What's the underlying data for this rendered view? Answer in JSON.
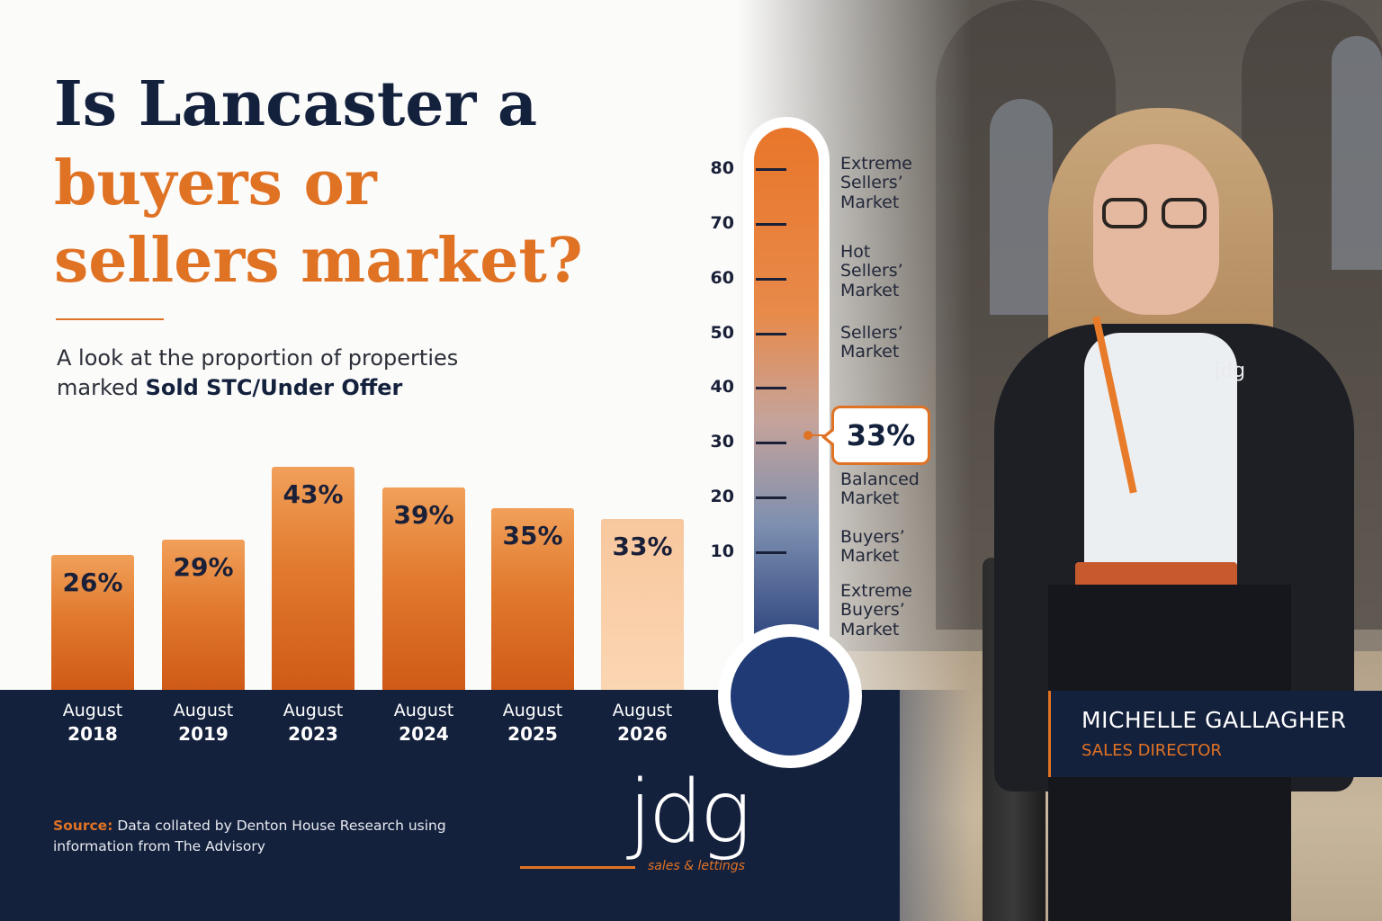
{
  "heading": {
    "line1": "Is Lancaster a",
    "line2": "buyers or",
    "line3": "sellers market?"
  },
  "subtitle": {
    "text1": "A look at the proportion of properties",
    "text2_prefix": "marked ",
    "text2_bold": "Sold STC/Under Offer"
  },
  "colors": {
    "accent": "#e07224",
    "navy": "#14213d",
    "bar_light": "#f7c9a0"
  },
  "chart_data": [
    {
      "type": "bar",
      "categories": [
        [
          "August",
          "2018"
        ],
        [
          "August",
          "2019"
        ],
        [
          "August",
          "2023"
        ],
        [
          "August",
          "2024"
        ],
        [
          "August",
          "2025"
        ],
        [
          "August",
          "2026"
        ]
      ],
      "values": [
        26,
        29,
        43,
        39,
        35,
        33
      ],
      "value_labels": [
        "26%",
        "29%",
        "43%",
        "39%",
        "35%",
        "33%"
      ],
      "ylim": [
        0,
        50
      ],
      "grid": false,
      "highlight_last": true
    },
    {
      "type": "gauge",
      "ticks": [
        "80",
        "70",
        "60",
        "50",
        "40",
        "30",
        "20",
        "10"
      ],
      "tick_values": [
        80,
        70,
        60,
        50,
        40,
        30,
        20,
        10
      ],
      "range": [
        0,
        90
      ],
      "value": 33,
      "value_label": "33%",
      "zones": [
        {
          "label": [
            "Extreme",
            "Sellers’",
            "Market"
          ]
        },
        {
          "label": [
            "Hot",
            "Sellers’",
            "Market"
          ]
        },
        {
          "label": [
            "Sellers’",
            "Market"
          ]
        },
        {
          "label": [
            "Balanced",
            "Market"
          ]
        },
        {
          "label": [
            "Buyers’",
            "Market"
          ]
        },
        {
          "label": [
            "Extreme",
            "Buyers’",
            "Market"
          ]
        }
      ]
    }
  ],
  "source": {
    "key": "Source:",
    "text": " Data collated by Denton House Research using information from The Advisory"
  },
  "logo": {
    "letters": "jdg",
    "tagline": "sales & lettings"
  },
  "person": {
    "name": "MICHELLE GALLAGHER",
    "role": "SALES DIRECTOR",
    "jacket_logo": "jdg"
  }
}
